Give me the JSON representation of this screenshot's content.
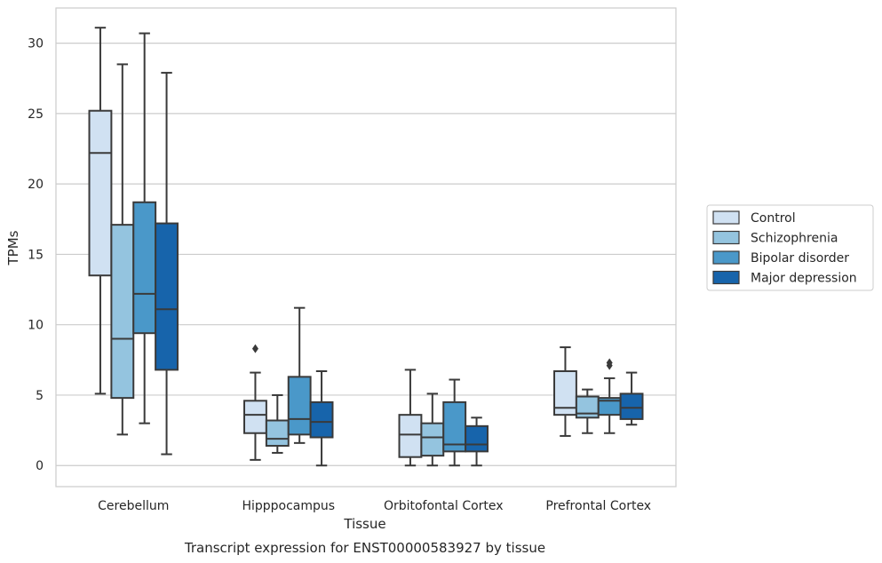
{
  "chart_data": {
    "type": "boxplot",
    "title": "Transcript expression for ENST00000583927 by tissue",
    "xlabel": "Tissue",
    "ylabel": "TPMs",
    "ylim": [
      -1.5,
      32.5
    ],
    "yticks": [
      0,
      5,
      10,
      15,
      20,
      25,
      30
    ],
    "grid": "horizontal",
    "legend_position": "right",
    "categories": [
      "Cerebellum",
      "Hipppocampus",
      "Orbitofontal Cortex",
      "Prefrontal Cortex"
    ],
    "series": [
      {
        "name": "Control",
        "color": "#d0e1f2",
        "boxes": [
          {
            "whislo": 5.1,
            "q1": 13.5,
            "med": 22.2,
            "q3": 25.2,
            "whishi": 31.1,
            "fliers": []
          },
          {
            "whislo": 0.4,
            "q1": 2.3,
            "med": 3.6,
            "q3": 4.6,
            "whishi": 6.6,
            "fliers": [
              8.3
            ]
          },
          {
            "whislo": 0.0,
            "q1": 0.6,
            "med": 2.2,
            "q3": 3.6,
            "whishi": 6.8,
            "fliers": []
          },
          {
            "whislo": 2.1,
            "q1": 3.6,
            "med": 4.1,
            "q3": 6.7,
            "whishi": 8.4,
            "fliers": []
          }
        ]
      },
      {
        "name": "Schizophrenia",
        "color": "#94c4df",
        "boxes": [
          {
            "whislo": 2.2,
            "q1": 4.8,
            "med": 9.0,
            "q3": 17.1,
            "whishi": 28.5,
            "fliers": []
          },
          {
            "whislo": 0.9,
            "q1": 1.4,
            "med": 1.9,
            "q3": 3.2,
            "whishi": 5.0,
            "fliers": []
          },
          {
            "whislo": 0.0,
            "q1": 0.7,
            "med": 2.0,
            "q3": 3.0,
            "whishi": 5.1,
            "fliers": []
          },
          {
            "whislo": 2.3,
            "q1": 3.4,
            "med": 3.7,
            "q3": 4.9,
            "whishi": 5.4,
            "fliers": []
          }
        ]
      },
      {
        "name": "Bipolar disorder",
        "color": "#4a98c9",
        "boxes": [
          {
            "whislo": 3.0,
            "q1": 9.4,
            "med": 12.2,
            "q3": 18.7,
            "whishi": 30.7,
            "fliers": []
          },
          {
            "whislo": 1.6,
            "q1": 2.2,
            "med": 3.3,
            "q3": 6.3,
            "whishi": 11.2,
            "fliers": []
          },
          {
            "whislo": 0.0,
            "q1": 1.0,
            "med": 1.5,
            "q3": 4.5,
            "whishi": 6.1,
            "fliers": []
          },
          {
            "whislo": 2.3,
            "q1": 3.6,
            "med": 4.6,
            "q3": 4.8,
            "whishi": 6.2,
            "fliers": [
              7.1,
              7.3
            ]
          }
        ]
      },
      {
        "name": "Major depression",
        "color": "#1764ab",
        "boxes": [
          {
            "whislo": 0.8,
            "q1": 6.8,
            "med": 11.1,
            "q3": 17.2,
            "whishi": 27.9,
            "fliers": []
          },
          {
            "whislo": 0.0,
            "q1": 2.0,
            "med": 3.1,
            "q3": 4.5,
            "whishi": 6.7,
            "fliers": []
          },
          {
            "whislo": 0.0,
            "q1": 1.0,
            "med": 1.5,
            "q3": 2.8,
            "whishi": 3.4,
            "fliers": []
          },
          {
            "whislo": 2.9,
            "q1": 3.3,
            "med": 4.1,
            "q3": 5.1,
            "whishi": 6.6,
            "fliers": []
          }
        ]
      }
    ]
  }
}
